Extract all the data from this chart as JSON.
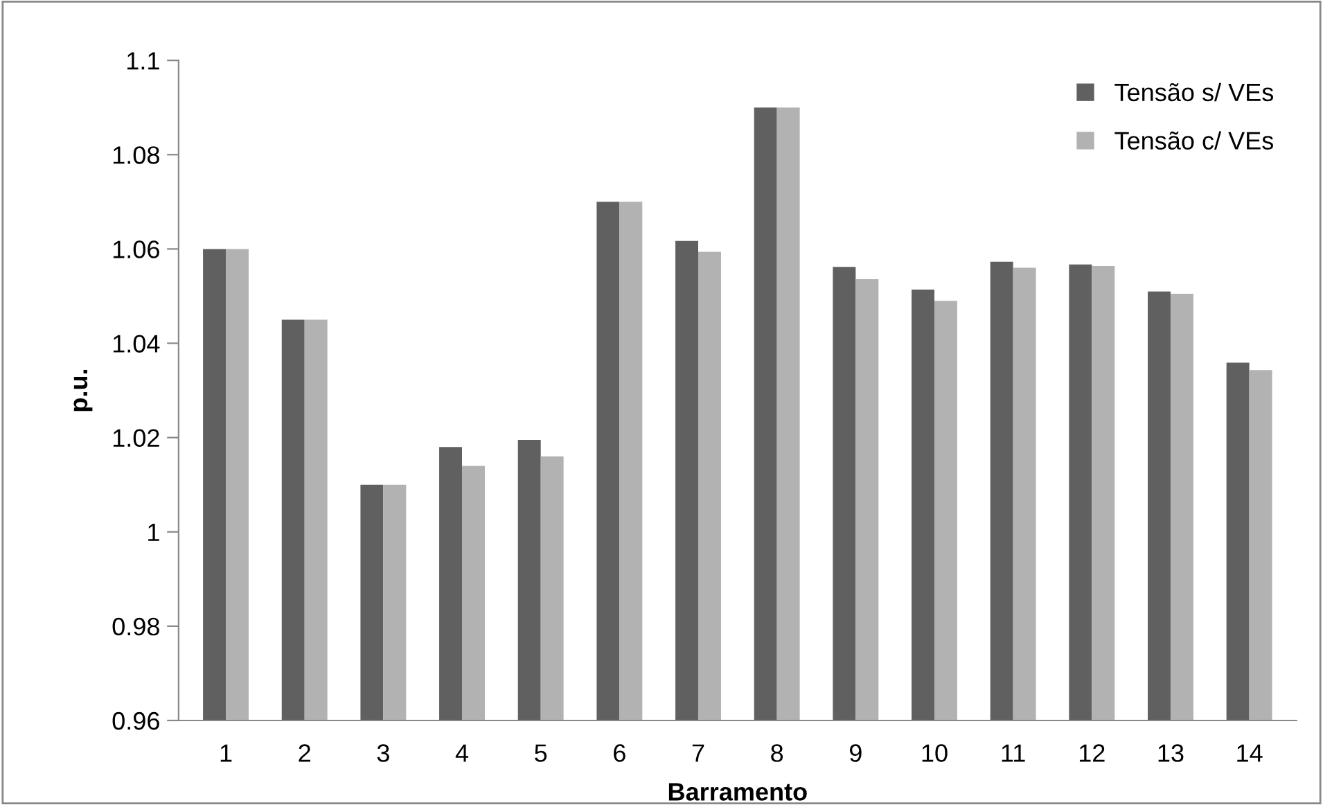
{
  "chart_data": {
    "type": "bar",
    "xlabel": "Barramento",
    "ylabel": "p.u.",
    "categories": [
      "1",
      "2",
      "3",
      "4",
      "5",
      "6",
      "7",
      "8",
      "9",
      "10",
      "11",
      "12",
      "13",
      "14"
    ],
    "series": [
      {
        "name": "Tensão s/ VEs",
        "color": "#606060",
        "values": [
          1.06,
          1.045,
          1.01,
          1.018,
          1.0195,
          1.07,
          1.0617,
          1.09,
          1.0562,
          1.0514,
          1.0573,
          1.0567,
          1.051,
          1.0359
        ]
      },
      {
        "name": "Tensão c/ VEs",
        "color": "#b2b2b2",
        "values": [
          1.06,
          1.045,
          1.01,
          1.014,
          1.016,
          1.07,
          1.0594,
          1.09,
          1.0536,
          1.049,
          1.056,
          1.0564,
          1.0505,
          1.0343
        ]
      }
    ],
    "ylim": [
      0.96,
      1.1
    ],
    "yticks": [
      0.96,
      0.98,
      1,
      1.02,
      1.04,
      1.06,
      1.08,
      1.1
    ],
    "grid": false,
    "legend": "top right"
  }
}
